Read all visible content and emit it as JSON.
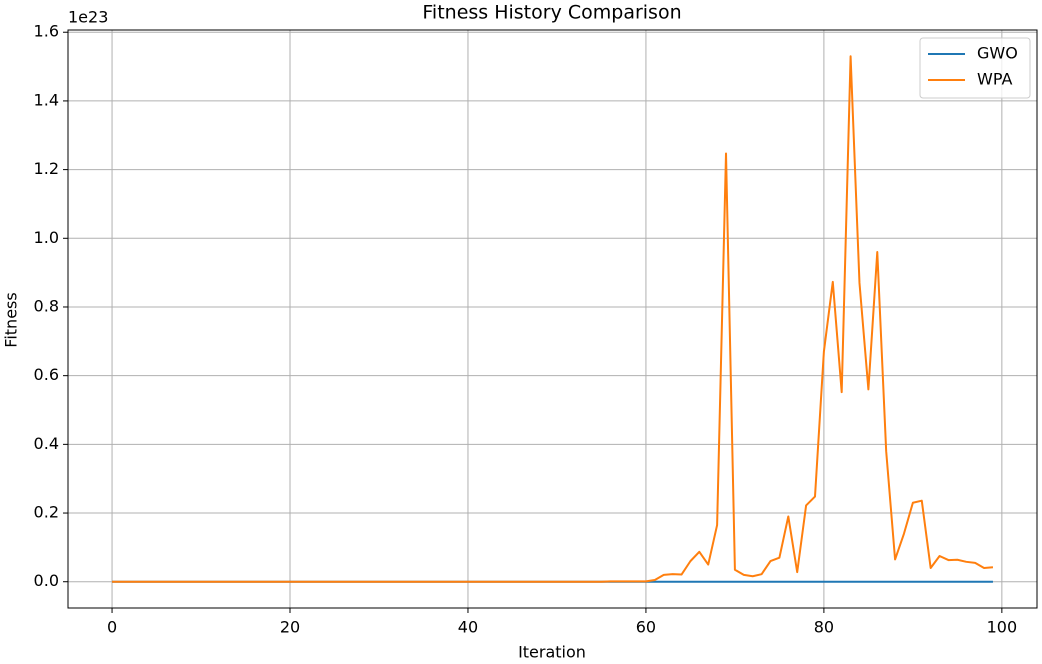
{
  "chart_data": {
    "type": "line",
    "title": "Fitness History Comparison",
    "x_label": "Iteration",
    "y_label": "Fitness",
    "y_offset_label": "1e23",
    "x": [
      0,
      1,
      2,
      3,
      4,
      5,
      6,
      7,
      8,
      9,
      10,
      11,
      12,
      13,
      14,
      15,
      16,
      17,
      18,
      19,
      20,
      21,
      22,
      23,
      24,
      25,
      26,
      27,
      28,
      29,
      30,
      31,
      32,
      33,
      34,
      35,
      36,
      37,
      38,
      39,
      40,
      41,
      42,
      43,
      44,
      45,
      46,
      47,
      48,
      49,
      50,
      51,
      52,
      53,
      54,
      55,
      56,
      57,
      58,
      59,
      60,
      61,
      62,
      63,
      64,
      65,
      66,
      67,
      68,
      69,
      70,
      71,
      72,
      73,
      74,
      75,
      76,
      77,
      78,
      79,
      80,
      81,
      82,
      83,
      84,
      85,
      86,
      87,
      88,
      89,
      90,
      91,
      92,
      93,
      94,
      95,
      96,
      97,
      98,
      99
    ],
    "series": [
      {
        "name": "GWO",
        "color": "#1f77b4",
        "values": [
          0,
          0,
          0,
          0,
          0,
          0,
          0,
          0,
          0,
          0,
          0,
          0,
          0,
          0,
          0,
          0,
          0,
          0,
          0,
          0,
          0,
          0,
          0,
          0,
          0,
          0,
          0,
          0,
          0,
          0,
          0,
          0,
          0,
          0,
          0,
          0,
          0,
          0,
          0,
          0,
          0,
          0,
          0,
          0,
          0,
          0,
          0,
          0,
          0,
          0,
          0,
          0,
          0,
          0,
          0,
          0,
          0,
          0,
          0,
          0,
          0,
          0,
          0,
          0,
          0,
          0,
          0,
          0,
          0,
          0,
          0,
          0,
          0,
          0,
          0,
          0,
          0,
          0,
          0,
          0,
          0,
          0,
          0,
          0,
          0,
          0,
          0,
          0,
          0,
          0,
          0,
          0,
          0,
          0,
          0,
          0,
          0,
          0,
          0,
          0
        ]
      },
      {
        "name": "WPA",
        "color": "#ff7f0e",
        "values": [
          0,
          0,
          0,
          0,
          0,
          0,
          0,
          0,
          0,
          0,
          0,
          0,
          0,
          0,
          0,
          0,
          0,
          0,
          0,
          0,
          0,
          0,
          0,
          0,
          0,
          0,
          0,
          0,
          0,
          0,
          0,
          0,
          0,
          0,
          0,
          0,
          0,
          0,
          0,
          0,
          0,
          0,
          0,
          0,
          0,
          0,
          0,
          0,
          0,
          0,
          0,
          0,
          0,
          0,
          0,
          0,
          0.001,
          0.001,
          0.001,
          0.001,
          0.001,
          0.005,
          0.02,
          0.022,
          0.021,
          0.06,
          0.087,
          0.05,
          0.165,
          1.247,
          0.035,
          0.02,
          0.016,
          0.022,
          0.06,
          0.07,
          0.19,
          0.028,
          0.222,
          0.248,
          0.67,
          0.873,
          0.552,
          1.53,
          0.87,
          0.56,
          0.96,
          0.38,
          0.065,
          0.14,
          0.23,
          0.236,
          0.04,
          0.075,
          0.063,
          0.064,
          0.058,
          0.055,
          0.04,
          0.042
        ]
      }
    ],
    "xlim": [
      -4.95,
      103.95
    ],
    "xticks": [
      0,
      20,
      40,
      60,
      80,
      100
    ],
    "ylim": [
      -0.0765,
      1.6065
    ],
    "yticks": [
      {
        "value": 0,
        "label": "0.0"
      },
      {
        "value": 0.2,
        "label": "0.2"
      },
      {
        "value": 0.4,
        "label": "0.4"
      },
      {
        "value": 0.6,
        "label": "0.6"
      },
      {
        "value": 0.8,
        "label": "0.8"
      },
      {
        "value": 1.0,
        "label": "1.0"
      },
      {
        "value": 1.2,
        "label": "1.2"
      },
      {
        "value": 1.4,
        "label": "1.4"
      },
      {
        "value": 1.6,
        "label": "1.6"
      }
    ],
    "grid": true,
    "legend": "upper right"
  }
}
